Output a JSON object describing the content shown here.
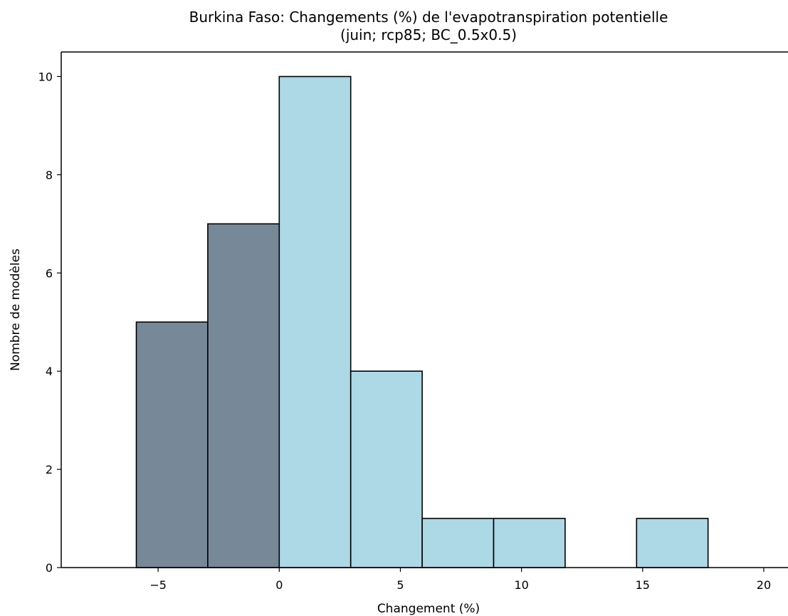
{
  "chart_data": {
    "type": "bar",
    "title": "Burkina Faso: Changements (%) de l'evapotranspiration potentielle",
    "subtitle": "(juin; rcp85; BC_0.5x0.5)",
    "xlabel": "Changement (%)",
    "ylabel": "Nombre de modèles",
    "xlim": [
      -9,
      21
    ],
    "ylim": [
      0,
      10.5
    ],
    "xticks": [
      -5,
      0,
      5,
      10,
      15,
      20
    ],
    "xtick_labels": [
      "−5",
      "0",
      "5",
      "10",
      "15",
      "20"
    ],
    "yticks": [
      0,
      2,
      4,
      6,
      8,
      10
    ],
    "ytick_labels": [
      "0",
      "2",
      "4",
      "6",
      "8",
      "10"
    ],
    "grid": false,
    "bins": [
      {
        "x0": -5.9,
        "x1": -2.95,
        "count": 5,
        "color": "#778899"
      },
      {
        "x0": -2.95,
        "x1": 0.0,
        "count": 7,
        "color": "#778899"
      },
      {
        "x0": 0.0,
        "x1": 2.95,
        "count": 10,
        "color": "#add8e6"
      },
      {
        "x0": 2.95,
        "x1": 5.9,
        "count": 4,
        "color": "#add8e6"
      },
      {
        "x0": 5.9,
        "x1": 8.85,
        "count": 1,
        "color": "#add8e6"
      },
      {
        "x0": 8.85,
        "x1": 11.8,
        "count": 1,
        "color": "#add8e6"
      },
      {
        "x0": 11.8,
        "x1": 14.75,
        "count": 0,
        "color": "#add8e6"
      },
      {
        "x0": 14.75,
        "x1": 17.7,
        "count": 1,
        "color": "#add8e6"
      }
    ],
    "colors": {
      "negative_change": "#778899",
      "positive_change": "#add8e6",
      "bar_edge": "#000000"
    }
  }
}
